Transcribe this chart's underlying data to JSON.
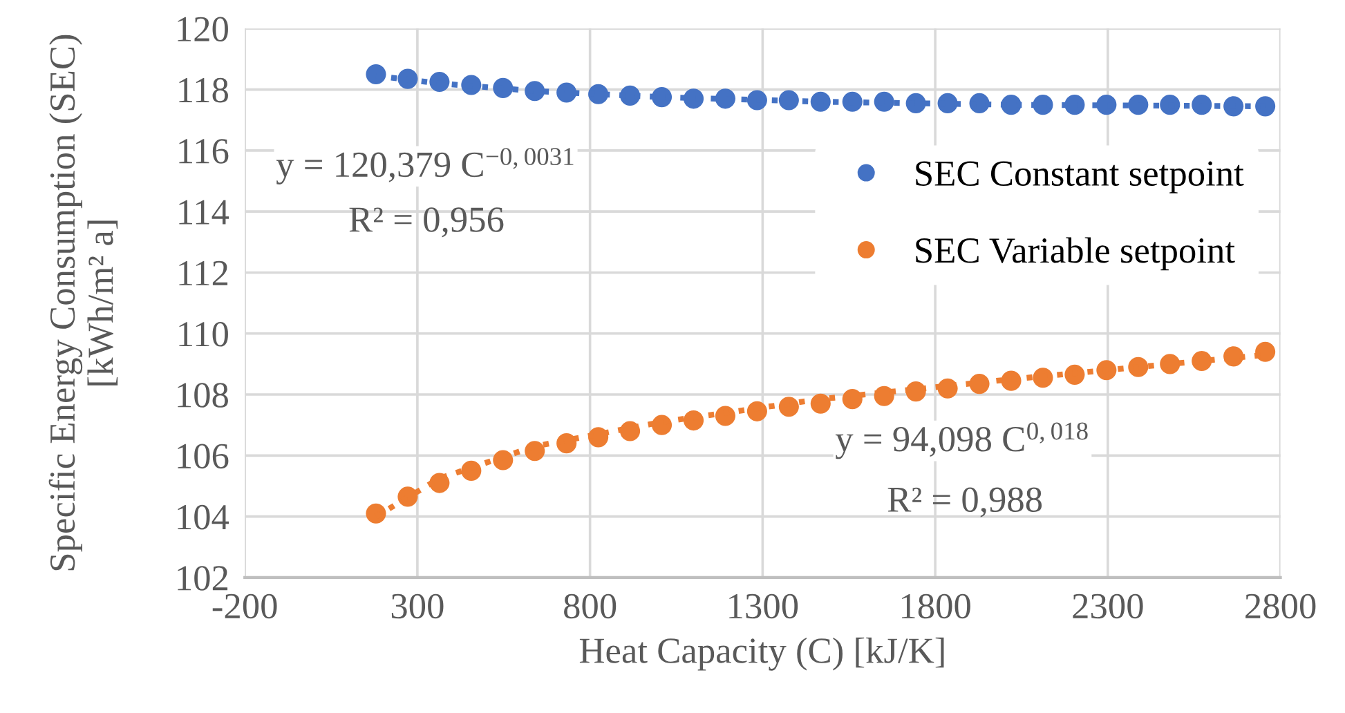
{
  "chart_data": {
    "type": "scatter",
    "xlabel": "Heat Capacity (C) [kJ/K]",
    "ylabel": "Specific Energy Consumption (SEC) [kWh/m² a]",
    "x": [
      180,
      272,
      364,
      456,
      548,
      640,
      732,
      824,
      916,
      1008,
      1100,
      1192,
      1284,
      1376,
      1468,
      1560,
      1652,
      1744,
      1836,
      1928,
      2020,
      2112,
      2204,
      2296,
      2388,
      2480,
      2572,
      2664,
      2756
    ],
    "series": [
      {
        "name": "SEC Constant setpoint",
        "color": "#4472c4",
        "marker": "circle",
        "values": [
          118.5,
          118.35,
          118.25,
          118.15,
          118.05,
          117.95,
          117.9,
          117.85,
          117.8,
          117.75,
          117.7,
          117.7,
          117.65,
          117.65,
          117.6,
          117.6,
          117.6,
          117.55,
          117.55,
          117.55,
          117.5,
          117.5,
          117.5,
          117.5,
          117.5,
          117.5,
          117.5,
          117.45,
          117.45
        ]
      },
      {
        "name": "SEC Variable setpoint",
        "color": "#ed7d31",
        "marker": "circle",
        "values": [
          104.1,
          104.65,
          105.1,
          105.5,
          105.85,
          106.15,
          106.4,
          106.6,
          106.8,
          107.0,
          107.15,
          107.3,
          107.45,
          107.6,
          107.7,
          107.85,
          107.95,
          108.1,
          108.2,
          108.35,
          108.45,
          108.55,
          108.65,
          108.8,
          108.9,
          109.0,
          109.1,
          109.25,
          109.4
        ]
      },
      {
        "type": "line",
        "color": "#4472c4",
        "line_style": "dotted",
        "x": [
          180,
          364,
          640,
          1008,
          1468,
          2020,
          2756
        ],
        "values": [
          118.45,
          118.2,
          117.95,
          117.75,
          117.6,
          117.5,
          117.45
        ]
      },
      {
        "type": "line",
        "color": "#ed7d31",
        "line_style": "dotted",
        "x": [
          180,
          364,
          640,
          1008,
          1468,
          2020,
          2756
        ],
        "values": [
          104.0,
          105.25,
          106.3,
          107.1,
          107.85,
          108.5,
          109.3
        ]
      }
    ],
    "annotations": [
      "y = 120,379 C$^{−0,0031}$",
      "R² = 0,956",
      "y = 94,098 C$^{0,018}$",
      "R² = 0,988"
    ],
    "xlim": [
      -200,
      2800
    ],
    "xticks": [
      -200,
      300,
      800,
      1300,
      1800,
      2300,
      2800
    ],
    "ylim": [
      102,
      120
    ],
    "yticks": [
      102,
      104,
      106,
      108,
      110,
      112,
      114,
      116,
      118,
      120
    ],
    "grid": true,
    "legend": "right"
  }
}
